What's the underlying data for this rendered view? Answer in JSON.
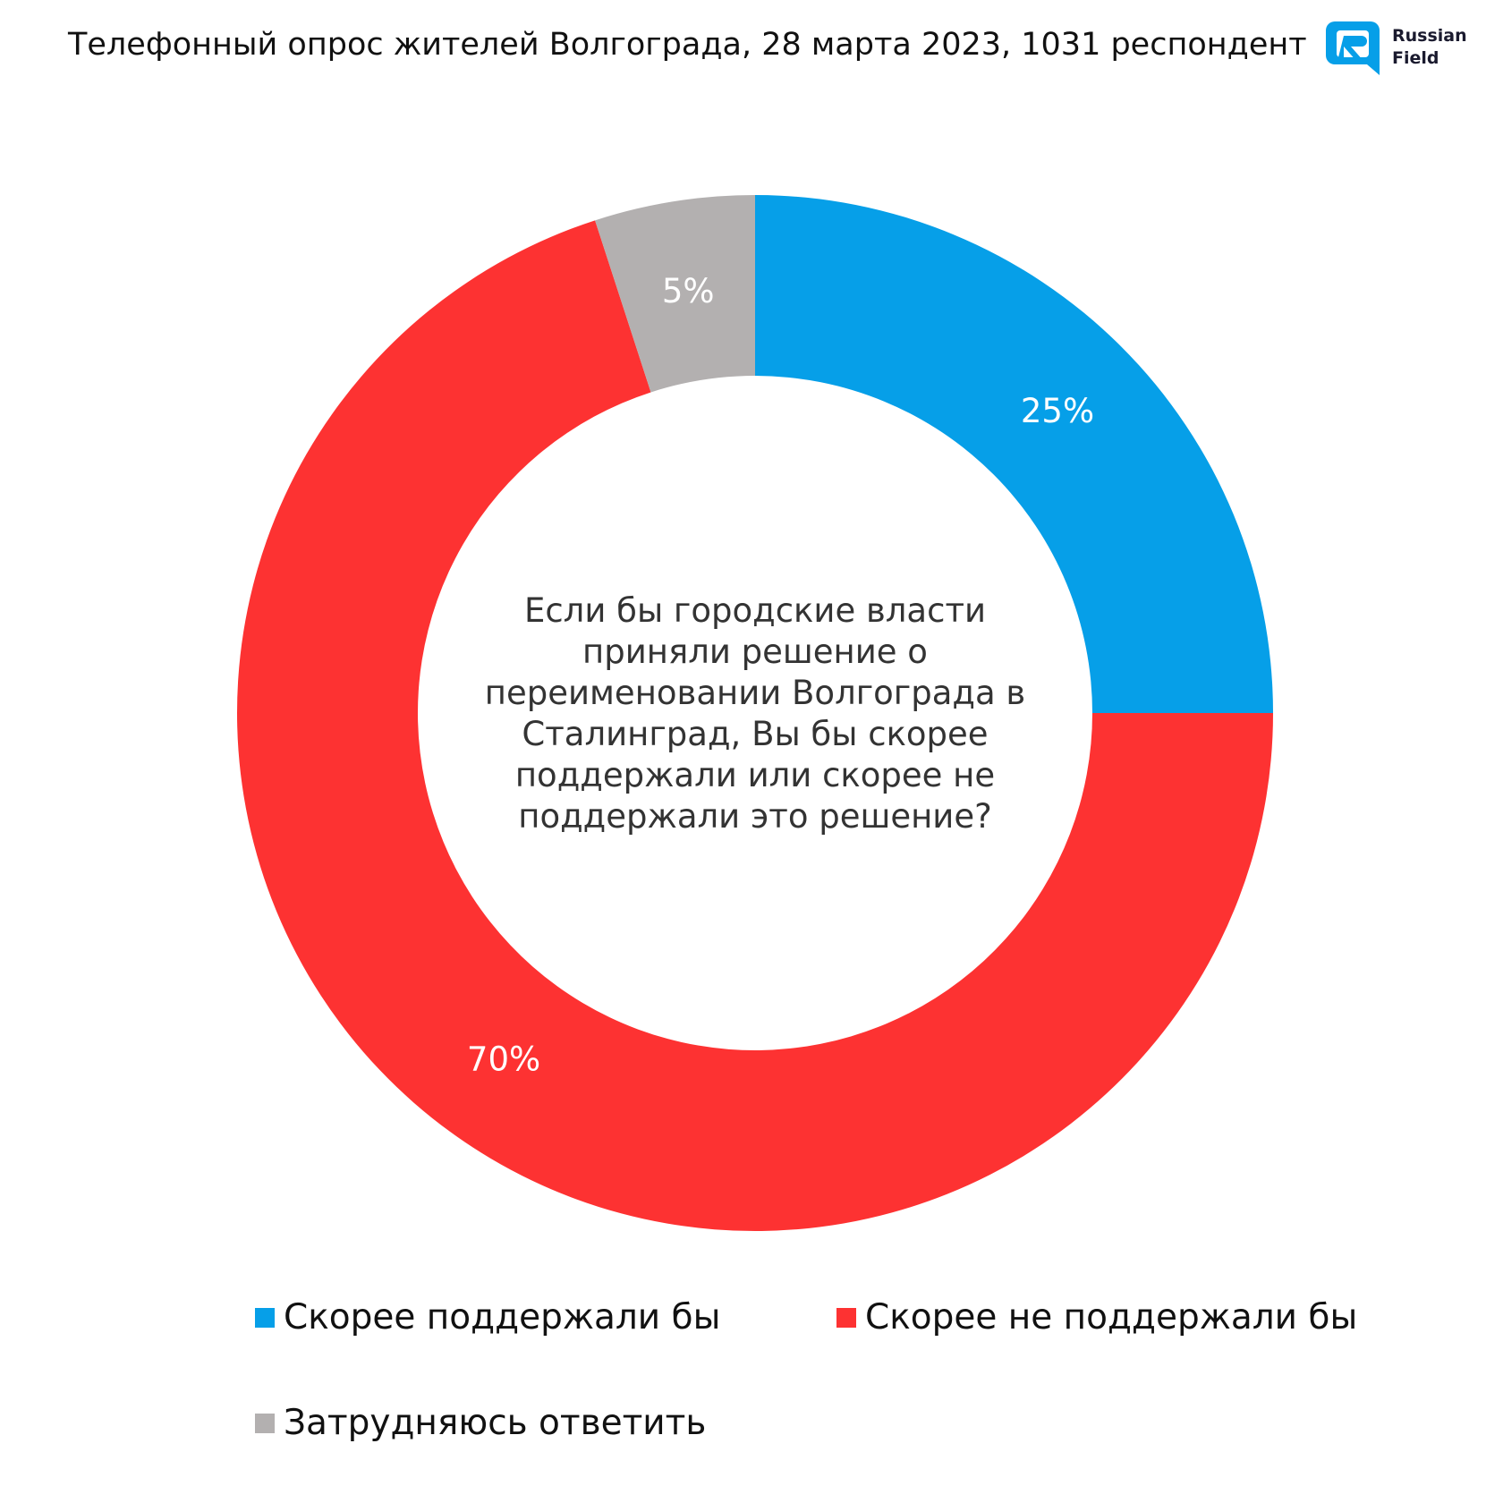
{
  "header": {
    "title": "Телефонный опрос жителей Волгограда, 28 марта 2023, 1031 респондент",
    "logo_text_1": "Russian",
    "logo_text_2": "Field",
    "logo_color": "#069fe8"
  },
  "chart_data": {
    "type": "pie",
    "donut": true,
    "center_text": "Если бы городские власти приняли решение о переименовании Волгограда в Сталинград, Вы бы скорее поддержали или скорее не поддержали это решение?",
    "categories": [
      "Скорее поддержали бы",
      "Скорее не поддержали бы",
      "Затрудняюсь ответить"
    ],
    "values": [
      25,
      70,
      5
    ],
    "labels": [
      "25%",
      "70%",
      "5%"
    ],
    "colors": [
      "#069fe8",
      "#fd3232",
      "#b3b0b0"
    ],
    "legend_position": "bottom"
  }
}
